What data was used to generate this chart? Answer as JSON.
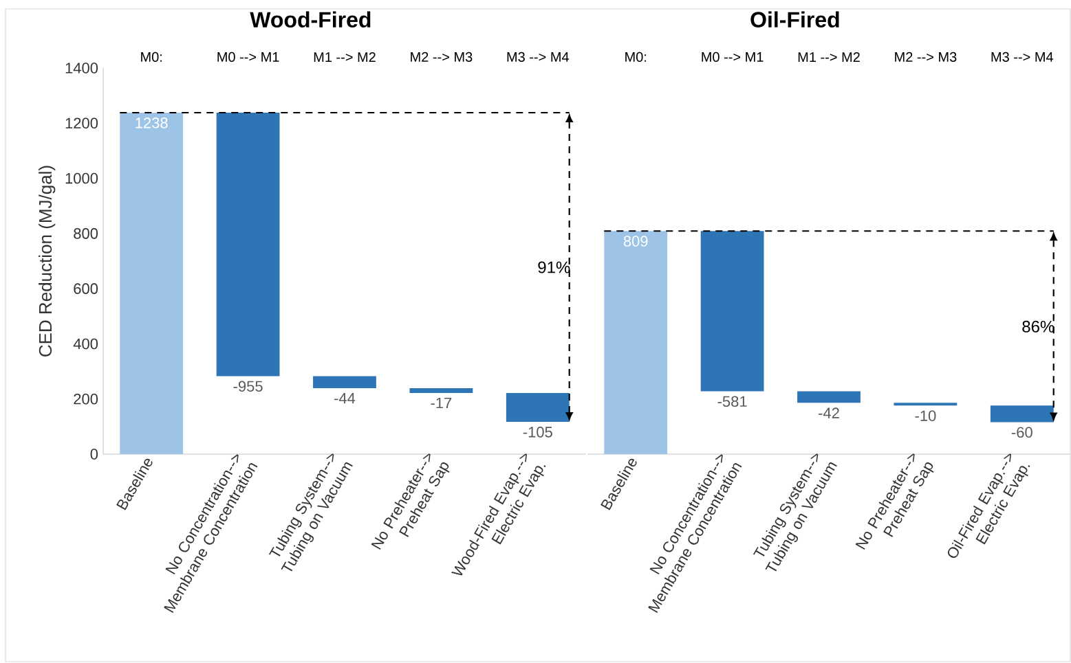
{
  "chart_data": [
    {
      "type": "bar",
      "title": "Wood-Fired",
      "ylabel": "CED Reduction (MJ/gal)",
      "categories": [
        "Baseline",
        "No Concentration--> Membrane Concentration",
        "Tubing System--> Tubing on Vacuum",
        "No Preheater--> Preheat Sap",
        "Wood-Fired Evap.--> Electric Evap."
      ],
      "values": [
        1238,
        -955,
        -44,
        -17,
        -105
      ],
      "base": [
        0,
        1238,
        283,
        239,
        222
      ],
      "colors": [
        "#9dc3e6",
        "#2e75b6",
        "#2e75b6",
        "#2e75b6",
        "#2e75b6"
      ],
      "data_labels": true,
      "ylim": [
        0,
        1400
      ],
      "yticks": [
        0,
        200,
        400,
        600,
        800,
        1000,
        1200,
        1400
      ],
      "ref_lines": [
        {
          "axis": "y",
          "value": 1238,
          "line_style": "dashed",
          "color": "#000000"
        }
      ],
      "annotations": [
        "M0:",
        "M0 --> M1",
        "M1 --> M2",
        "M2 --> M3",
        "M3 --> M4",
        "91%"
      ]
    },
    {
      "type": "bar",
      "title": "Oil-Fired",
      "categories": [
        "Baseline",
        "No Concentration--> Membrane Concentration",
        "Tubing System--> Tubing on Vacuum",
        "No Preheater--> Preheat Sap",
        "Oil-Fired Evap.--> Electric Evap."
      ],
      "values": [
        809,
        -581,
        -42,
        -10,
        -60
      ],
      "base": [
        0,
        809,
        228,
        186,
        176
      ],
      "colors": [
        "#9dc3e6",
        "#2e75b6",
        "#2e75b6",
        "#2e75b6",
        "#2e75b6"
      ],
      "data_labels": true,
      "ylim": [
        0,
        1400
      ],
      "tick_labels": "x",
      "ref_lines": [
        {
          "axis": "y",
          "value": 809,
          "line_style": "dashed",
          "color": "#000000"
        }
      ],
      "annotations": [
        "M0:",
        "M0 --> M1",
        "M1 --> M2",
        "M2 --> M3",
        "M3 --> M4",
        "86%"
      ]
    }
  ]
}
